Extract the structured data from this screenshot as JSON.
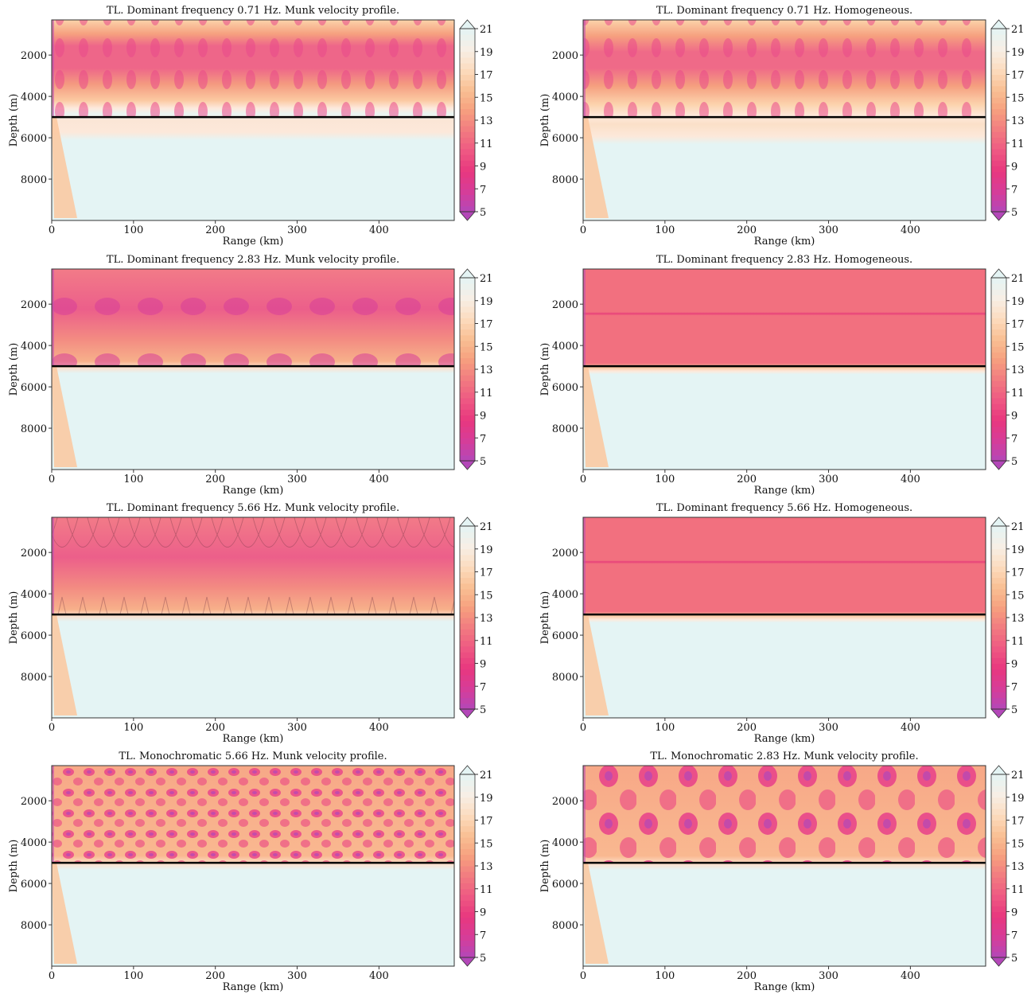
{
  "colormap": [
    "#b347b8",
    "#d63d99",
    "#e8377e",
    "#ee5983",
    "#f27b80",
    "#f6a07f",
    "#f9c094",
    "#fcdcbf",
    "#f7efe6",
    "#e4f4f4"
  ],
  "chart_data": [
    {
      "type": "contour",
      "title": "TL. Dominant frequency 0.71 Hz. Munk velocity profile.",
      "xlabel": "Range (km)",
      "ylabel": "Depth (m)",
      "xlim": [
        0,
        492
      ],
      "ylim": [
        10000,
        300
      ],
      "xticks": [
        0,
        100,
        200,
        300,
        400
      ],
      "yticks": [
        2000,
        4000,
        6000,
        8000
      ],
      "interface_depth": 5000,
      "clim": [
        5,
        21
      ],
      "cticks": [
        5,
        7,
        9,
        11,
        13,
        15,
        17,
        19,
        21
      ]
    },
    {
      "type": "contour",
      "title": "TL. Dominant frequency 0.71 Hz. Homogeneous.",
      "xlabel": "Range (km)",
      "ylabel": "Depth (m)",
      "xlim": [
        0,
        492
      ],
      "ylim": [
        10000,
        300
      ],
      "xticks": [
        0,
        100,
        200,
        300,
        400
      ],
      "yticks": [
        2000,
        4000,
        6000,
        8000
      ],
      "interface_depth": 5000,
      "clim": [
        5,
        21
      ],
      "cticks": [
        5,
        7,
        9,
        11,
        13,
        15,
        17,
        19,
        21
      ]
    },
    {
      "type": "contour",
      "title": "TL. Dominant frequency 2.83 Hz. Munk velocity profile.",
      "xlabel": "Range (km)",
      "ylabel": "Depth (m)",
      "xlim": [
        0,
        492
      ],
      "ylim": [
        10000,
        300
      ],
      "xticks": [
        0,
        100,
        200,
        300,
        400
      ],
      "yticks": [
        2000,
        4000,
        6000,
        8000
      ],
      "interface_depth": 5000,
      "clim": [
        5,
        21
      ],
      "cticks": [
        5,
        7,
        9,
        11,
        13,
        15,
        17,
        19,
        21
      ]
    },
    {
      "type": "contour",
      "title": "TL. Dominant frequency 2.83 Hz. Homogeneous.",
      "xlabel": "Range (km)",
      "ylabel": "Depth (m)",
      "xlim": [
        0,
        492
      ],
      "ylim": [
        10000,
        300
      ],
      "xticks": [
        0,
        100,
        200,
        300,
        400
      ],
      "yticks": [
        2000,
        4000,
        6000,
        8000
      ],
      "interface_depth": 5000,
      "clim": [
        5,
        21
      ],
      "cticks": [
        5,
        7,
        9,
        11,
        13,
        15,
        17,
        19,
        21
      ]
    },
    {
      "type": "contour",
      "title": "TL. Dominant frequency 5.66 Hz. Munk velocity profile.",
      "xlabel": "Range (km)",
      "ylabel": "Depth (m)",
      "xlim": [
        0,
        492
      ],
      "ylim": [
        10000,
        300
      ],
      "xticks": [
        0,
        100,
        200,
        300,
        400
      ],
      "yticks": [
        2000,
        4000,
        6000,
        8000
      ],
      "interface_depth": 5000,
      "clim": [
        5,
        21
      ],
      "cticks": [
        5,
        7,
        9,
        11,
        13,
        15,
        17,
        19,
        21
      ]
    },
    {
      "type": "contour",
      "title": "TL. Dominant frequency 5.66 Hz. Homogeneous.",
      "xlabel": "Range (km)",
      "ylabel": "Depth (m)",
      "xlim": [
        0,
        492
      ],
      "ylim": [
        10000,
        300
      ],
      "xticks": [
        0,
        100,
        200,
        300,
        400
      ],
      "yticks": [
        2000,
        4000,
        6000,
        8000
      ],
      "interface_depth": 5000,
      "clim": [
        5,
        21
      ],
      "cticks": [
        5,
        7,
        9,
        11,
        13,
        15,
        17,
        19,
        21
      ]
    },
    {
      "type": "contour",
      "title": "TL. Monochromatic 5.66 Hz. Munk velocity profile.",
      "xlabel": "Range (km)",
      "ylabel": "Depth (m)",
      "xlim": [
        0,
        492
      ],
      "ylim": [
        10000,
        300
      ],
      "xticks": [
        0,
        100,
        200,
        300,
        400
      ],
      "yticks": [
        2000,
        4000,
        6000,
        8000
      ],
      "interface_depth": 5000,
      "clim": [
        5,
        21
      ],
      "cticks": [
        5,
        7,
        9,
        11,
        13,
        15,
        17,
        19,
        21
      ]
    },
    {
      "type": "contour",
      "title": "TL. Monochromatic 2.83 Hz. Munk velocity profile.",
      "xlabel": "Range (km)",
      "ylabel": "Depth (m)",
      "xlim": [
        0,
        492
      ],
      "ylim": [
        10000,
        300
      ],
      "xticks": [
        0,
        100,
        200,
        300,
        400
      ],
      "yticks": [
        2000,
        4000,
        6000,
        8000
      ],
      "interface_depth": 5000,
      "clim": [
        5,
        21
      ],
      "cticks": [
        5,
        7,
        9,
        11,
        13,
        15,
        17,
        19,
        21
      ]
    }
  ]
}
